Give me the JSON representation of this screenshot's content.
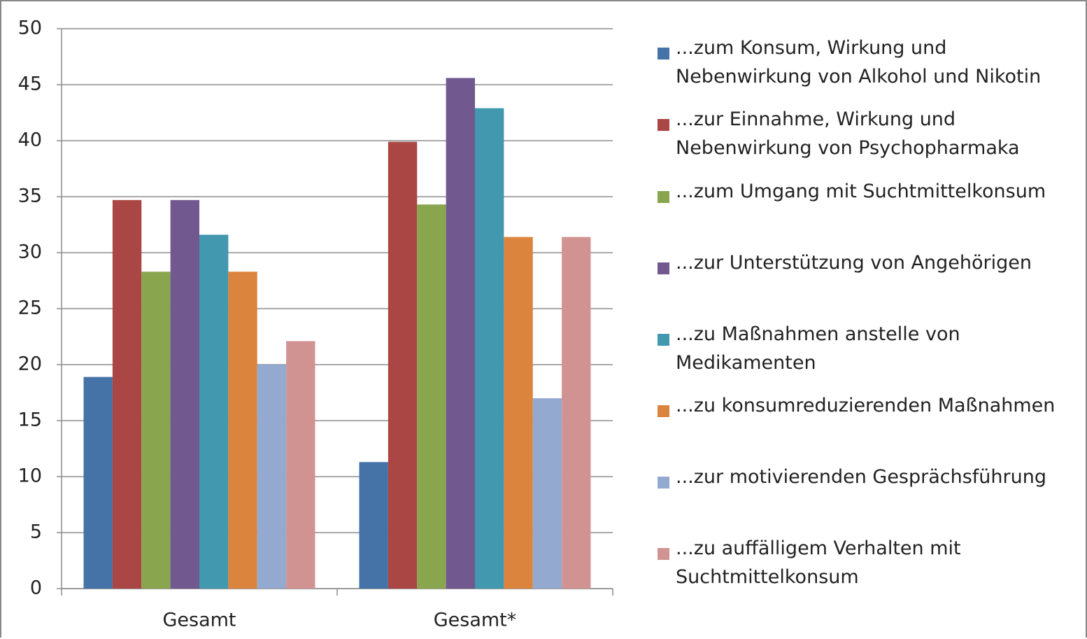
{
  "chart_data": {
    "type": "bar",
    "categories": [
      "Gesamt",
      "Gesamt*"
    ],
    "series": [
      {
        "name": "...zum Konsum, Wirkung und\nNebenwirkung von Alkohol und Nikotin",
        "color": "#4572a7",
        "values": [
          18.9,
          11.3
        ]
      },
      {
        "name": "...zur Einnahme, Wirkung und\nNebenwirkung von Psychopharmaka",
        "color": "#aa4643",
        "values": [
          34.7,
          39.9
        ]
      },
      {
        "name": "...zum Umgang mit Suchtmittelkonsum",
        "color": "#89a54e",
        "values": [
          28.3,
          34.3
        ]
      },
      {
        "name": "...zur Unterstützung von Angehörigen",
        "color": "#71588f",
        "values": [
          34.7,
          45.6
        ]
      },
      {
        "name": "...zu Maßnahmen anstelle von\nMedikamenten",
        "color": "#4198af",
        "values": [
          31.6,
          42.9
        ]
      },
      {
        "name": "...zu konsumreduzierenden Maßnahmen",
        "color": "#db843d",
        "values": [
          28.3,
          31.4
        ]
      },
      {
        "name": "...zur motivierenden Gesprächsführung",
        "color": "#93a9cf",
        "values": [
          20.0,
          17.0
        ]
      },
      {
        "name": "...zu auffälligem Verhalten mit\nSuchtmittelkonsum",
        "color": "#d19392",
        "values": [
          22.1,
          31.4
        ]
      }
    ],
    "ylim": [
      0,
      50
    ],
    "yticks": [
      0,
      5,
      10,
      15,
      20,
      25,
      30,
      35,
      40,
      45,
      50
    ],
    "grid": true,
    "legend": "right"
  }
}
